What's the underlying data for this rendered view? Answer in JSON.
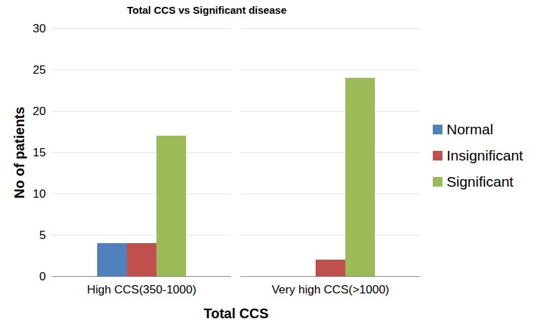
{
  "chart_data": {
    "type": "bar",
    "title": "Total CCS vs Significant disease",
    "x_label": "Total CCS",
    "y_label": "No of patients",
    "categories": [
      "High CCS(350-1000)",
      "Very high CCS(>1000)"
    ],
    "series": [
      {
        "name": "Normal",
        "color": "#4f81bd",
        "values": [
          4,
          0
        ]
      },
      {
        "name": "Insignificant",
        "color": "#c0504d",
        "values": [
          4,
          2
        ]
      },
      {
        "name": "Significant",
        "color": "#9bbb59",
        "values": [
          17,
          24
        ]
      }
    ],
    "ylim": [
      0,
      30
    ],
    "yticks": [
      0,
      5,
      10,
      15,
      20,
      25,
      30
    ],
    "grid": true,
    "legend": "right"
  }
}
